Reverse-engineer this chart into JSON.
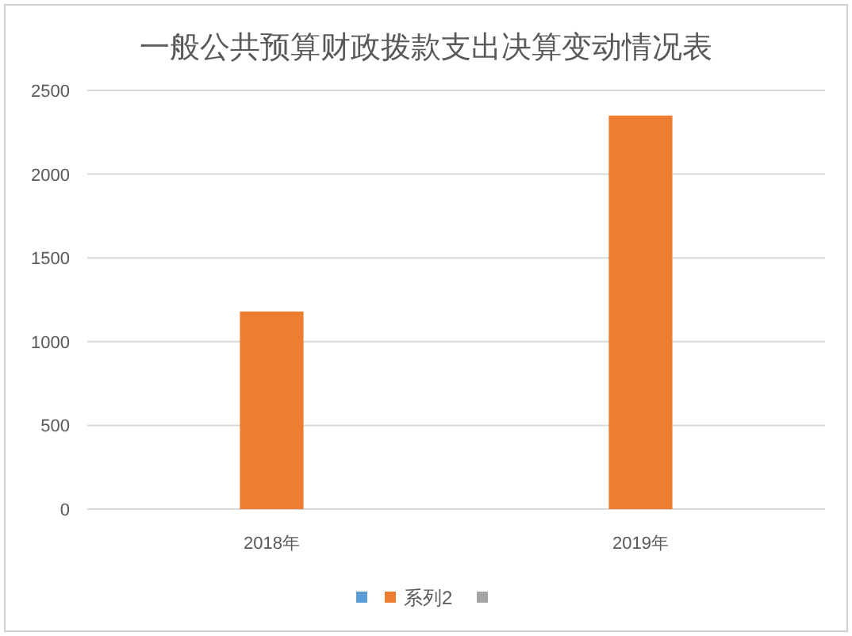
{
  "chart_data": {
    "type": "bar",
    "title": "一般公共预算财政拨款支出决算变动情况表",
    "categories": [
      "2018年",
      "2019年"
    ],
    "series": [
      {
        "color": "#5b9bd5",
        "values": [
          null,
          null
        ]
      },
      {
        "name": "系列2",
        "color": "#ed7d31",
        "values": [
          1180,
          2350
        ]
      },
      {
        "color": "#a5a5a5",
        "values": [
          null,
          null
        ]
      }
    ],
    "ylim": [
      0,
      2500
    ],
    "yticks": [
      0,
      500,
      1000,
      1500,
      2000,
      2500
    ],
    "grid": "y",
    "legend": "bottom"
  }
}
